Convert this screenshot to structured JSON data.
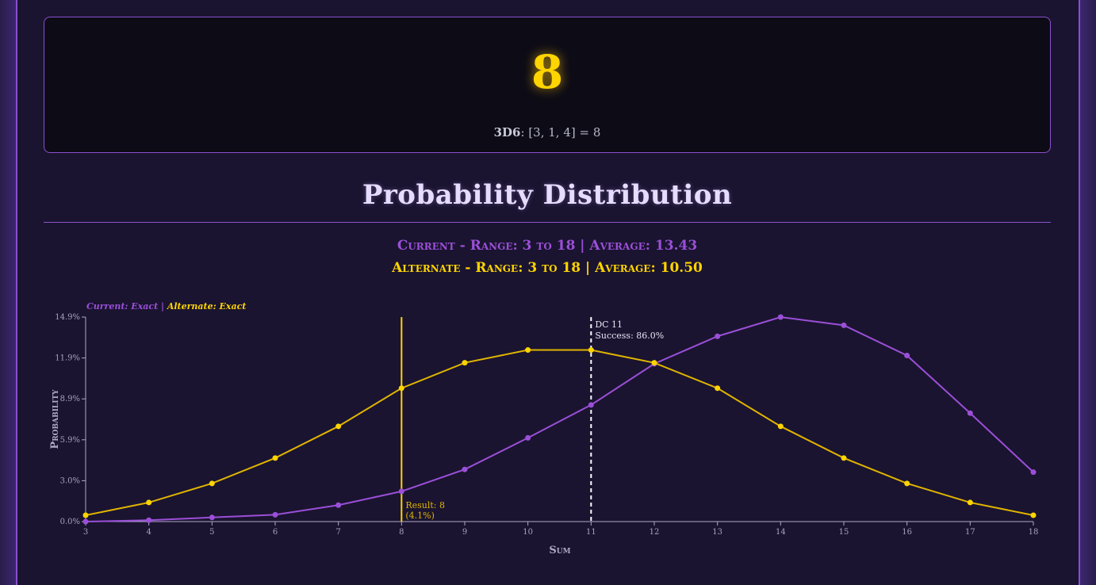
{
  "result": {
    "value": "8",
    "dice_label": "3D6",
    "dice_detail": ": [3, 1, 4] = 8"
  },
  "section_title": "Probability Distribution",
  "summary": {
    "current": "Current - Range: 3 to 18 | Average: 13.43",
    "alternate": "Alternate - Range: 3 to 18 | Average: 10.50"
  },
  "colors": {
    "current": "#9b4fd8",
    "alternate": "#e0b400",
    "accent": "#8a4fd0"
  },
  "chart_data": {
    "type": "line",
    "mode_label_current": "Current: Exact",
    "mode_label_separator": " | ",
    "mode_label_alternate": "Alternate: Exact",
    "xlabel": "Sum",
    "ylabel": "Probability",
    "x": [
      3,
      4,
      5,
      6,
      7,
      8,
      9,
      10,
      11,
      12,
      13,
      14,
      15,
      16,
      17,
      18
    ],
    "ylim": [
      0,
      14.9
    ],
    "yticks": [
      "0.0%",
      "3.0%",
      "5.9%",
      "8.9%",
      "11.9%",
      "14.9%"
    ],
    "ytick_values": [
      0,
      2.98,
      5.96,
      8.94,
      11.92,
      14.9
    ],
    "series": [
      {
        "name": "Current",
        "values": [
          0.0,
          0.1,
          0.3,
          0.5,
          1.2,
          2.2,
          3.8,
          6.1,
          8.5,
          11.5,
          13.5,
          14.9,
          14.3,
          12.1,
          7.9,
          3.6
        ]
      },
      {
        "name": "Alternate",
        "values": [
          0.46,
          1.39,
          2.78,
          4.63,
          6.94,
          9.72,
          11.57,
          12.5,
          12.5,
          11.57,
          9.72,
          6.94,
          4.63,
          2.78,
          1.39,
          0.46
        ]
      }
    ],
    "result_marker": {
      "x": 8,
      "label": "Result: 8",
      "sub_label": "(4.1%)"
    },
    "dc_marker": {
      "x": 11,
      "label": "DC 11",
      "success_label": "Success: 86.0%"
    },
    "grid": false
  }
}
